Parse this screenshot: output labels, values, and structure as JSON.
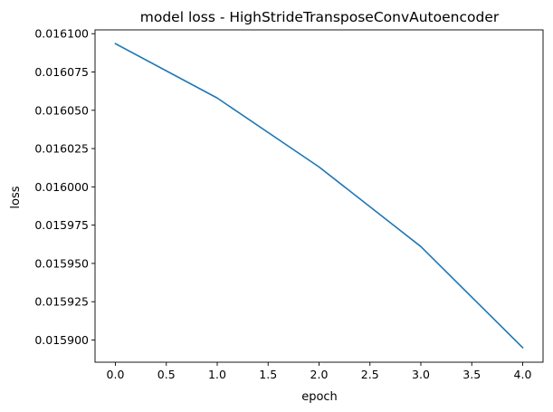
{
  "chart_data": {
    "type": "line",
    "title": "model loss - HighStrideTransposeConvAutoencoder",
    "xlabel": "epoch",
    "ylabel": "loss",
    "x": [
      0,
      1,
      2,
      3,
      4
    ],
    "series": [
      {
        "values": [
          0.0160935,
          0.016058,
          0.016013,
          0.015961,
          0.015895
        ],
        "color": "#1f77b4"
      }
    ],
    "xlim": [
      -0.2,
      4.2
    ],
    "ylim": [
      0.0158855,
      0.0161025
    ],
    "xticks": [
      0.0,
      0.5,
      1.0,
      1.5,
      2.0,
      2.5,
      3.0,
      3.5,
      4.0
    ],
    "xtick_labels": [
      "0.0",
      "0.5",
      "1.0",
      "1.5",
      "2.0",
      "2.5",
      "3.0",
      "3.5",
      "4.0"
    ],
    "yticks": [
      0.0159,
      0.015925,
      0.01595,
      0.015975,
      0.016,
      0.016025,
      0.01605,
      0.016075,
      0.0161
    ],
    "ytick_labels": [
      "0.015900",
      "0.015925",
      "0.015950",
      "0.015975",
      "0.016000",
      "0.016025",
      "0.016050",
      "0.016075",
      "0.016100"
    ],
    "grid": false,
    "legend": "none"
  }
}
